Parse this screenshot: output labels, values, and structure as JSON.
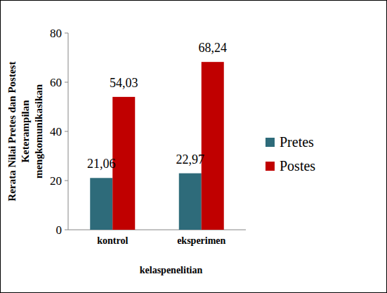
{
  "chart_data": {
    "type": "bar",
    "x_label": "kelaspenelitian",
    "y_label": "Rerata Nilai Pretes dan Postest Keterampilan mengkomunikasikan",
    "categories": [
      "kontrol",
      "eksperimen"
    ],
    "series": [
      {
        "name": "Pretes",
        "color": "#2e6b7a",
        "values": [
          21.06,
          22.97
        ],
        "value_labels": [
          "21,06",
          "22,97"
        ]
      },
      {
        "name": "Postes",
        "color": "#c00000",
        "values": [
          54.03,
          68.24
        ],
        "value_labels": [
          "54,03",
          "68,24"
        ]
      }
    ],
    "ylim": [
      0,
      80
    ],
    "yticks": [
      0,
      20,
      40,
      60,
      80
    ],
    "grid": false,
    "legend": "right",
    "data_labels": true
  }
}
